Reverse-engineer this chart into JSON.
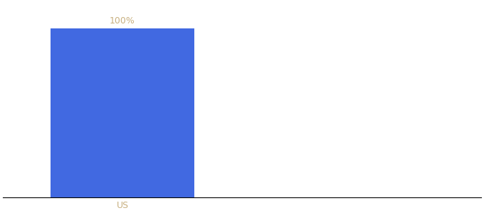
{
  "categories": [
    "US"
  ],
  "values": [
    100
  ],
  "bar_color": "#4169e1",
  "label_color": "#c8b080",
  "xlabel_color": "#c8b080",
  "value_labels": [
    "100%"
  ],
  "background_color": "#ffffff",
  "ylim": [
    0,
    115
  ],
  "bar_width": 0.6,
  "figsize": [
    6.8,
    3.0
  ],
  "dpi": 100,
  "label_fontsize": 9,
  "xtick_fontsize": 9,
  "xlim": [
    -0.5,
    1.5
  ]
}
